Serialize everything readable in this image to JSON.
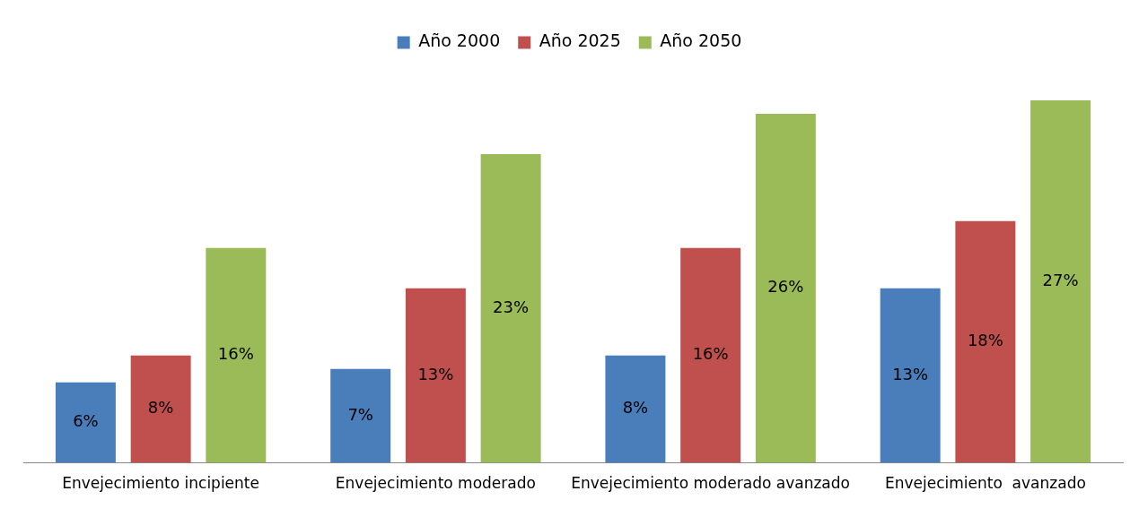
{
  "chart_data": {
    "type": "bar",
    "categories": [
      "Envejecimiento incipiente",
      "Envejecimiento moderado",
      "Envejecimiento moderado avanzado",
      "Envejecimiento  avanzado"
    ],
    "series": [
      {
        "name": "Año 2000",
        "color": "#4a7ebb",
        "values": [
          6,
          7,
          8,
          13
        ],
        "value_labels": [
          "6%",
          "7%",
          "8%",
          "13%"
        ]
      },
      {
        "name": "Año 2025",
        "color": "#c0504d",
        "values": [
          8,
          13,
          16,
          18
        ],
        "value_labels": [
          "8%",
          "13%",
          "16%",
          "18%"
        ]
      },
      {
        "name": "Año 2050",
        "color": "#9bbb59",
        "values": [
          16,
          23,
          26,
          27
        ],
        "value_labels": [
          "16%",
          "23%",
          "26%",
          "27%"
        ]
      }
    ],
    "tick_labels": "x",
    "grid": false,
    "legend": "top"
  }
}
